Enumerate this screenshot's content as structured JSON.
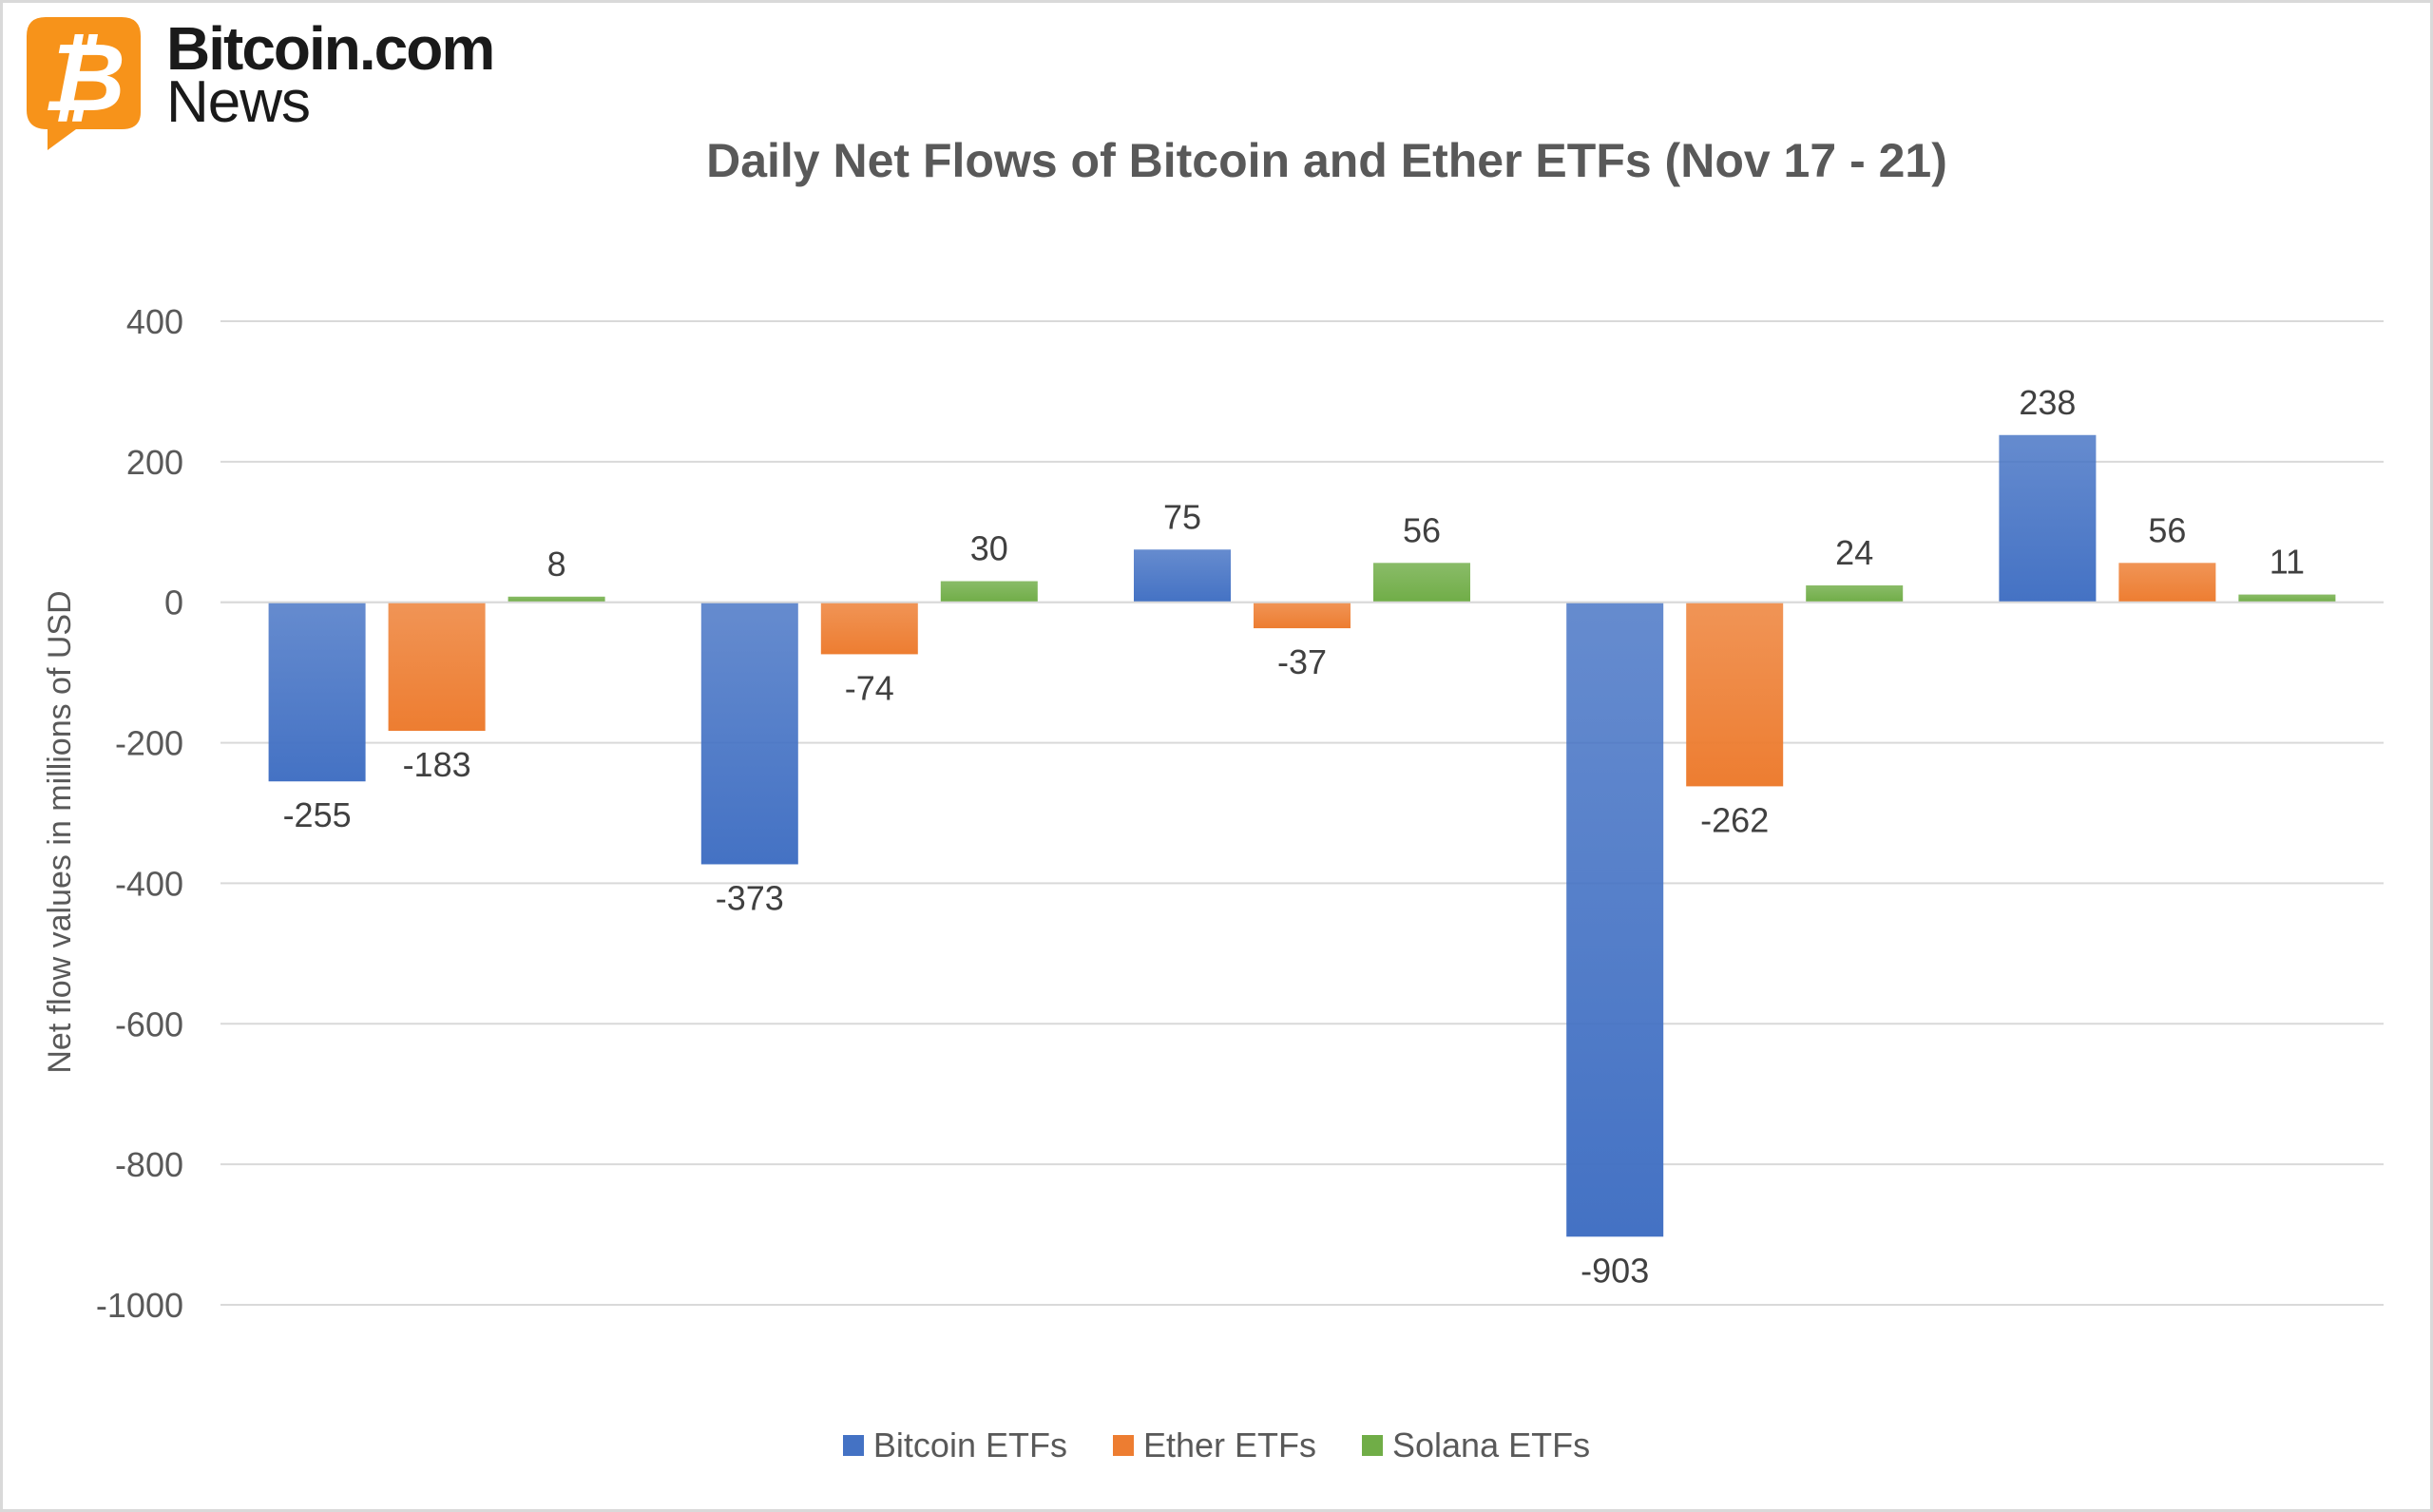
{
  "logo": {
    "line1": "Bitcoin.com",
    "line2": "News",
    "brand_color": "#F7931A"
  },
  "chart_data": {
    "type": "bar",
    "title": "Daily Net Flows of Bitcoin and Ether ETFs (Nov 17 - 21)",
    "xlabel": "",
    "ylabel": "Net flow values in millions of USD",
    "ylim": [
      -1000,
      400
    ],
    "yticks": [
      400,
      200,
      0,
      -200,
      -400,
      -600,
      -800,
      -1000
    ],
    "grid": true,
    "legend_position": "bottom",
    "categories": [
      "",
      "",
      "",
      "",
      ""
    ],
    "series": [
      {
        "name": "Bitcoin ETFs",
        "color": "#4472C4",
        "values": [
          -255,
          -373,
          75,
          -903,
          238
        ]
      },
      {
        "name": "Ether ETFs",
        "color": "#ED7D31",
        "values": [
          -183,
          -74,
          -37,
          -262,
          56
        ]
      },
      {
        "name": "Solana ETFs",
        "color": "#70AD47",
        "values": [
          8,
          30,
          56,
          24,
          11
        ]
      }
    ]
  }
}
